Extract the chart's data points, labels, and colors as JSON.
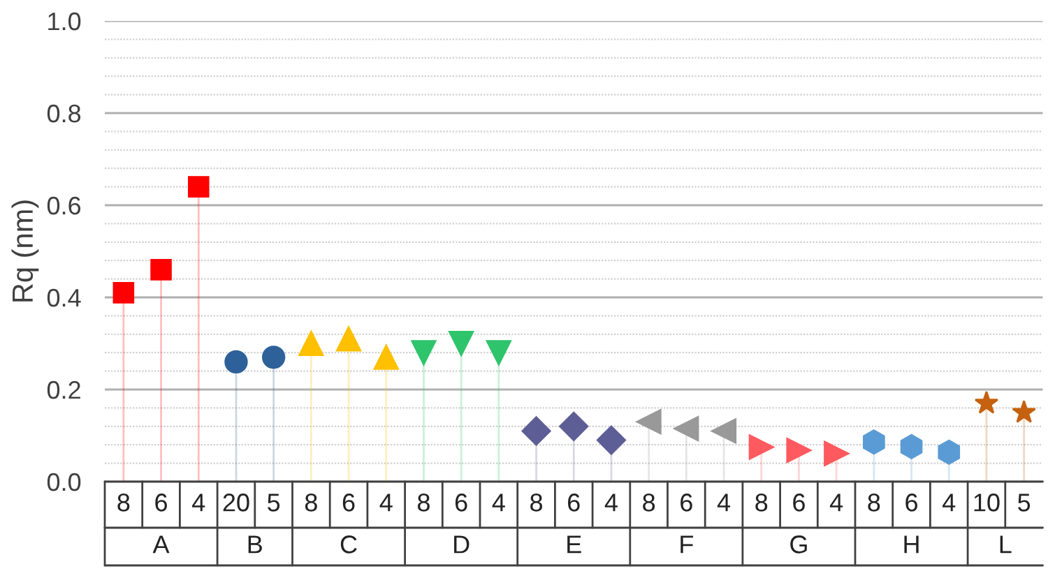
{
  "chart_data": {
    "type": "lollipop",
    "ylabel": "Rq (nm)",
    "categories": [
      "8",
      "6",
      "4",
      "20",
      "5",
      "8",
      "6",
      "4",
      "8",
      "6",
      "4",
      "8",
      "6",
      "4",
      "8",
      "6",
      "4",
      "8",
      "6",
      "4",
      "8",
      "6",
      "4",
      "10",
      "5"
    ],
    "ylim": [
      0,
      1.0
    ],
    "yticks": [
      {
        "value": 0,
        "label": "0.0"
      },
      {
        "value": 0.04,
        "label": null
      },
      {
        "value": 0.08,
        "label": null
      },
      {
        "value": 0.12,
        "label": null
      },
      {
        "value": 0.16,
        "label": null
      },
      {
        "value": 0.2,
        "label": "0.2"
      },
      {
        "value": 0.24,
        "label": null
      },
      {
        "value": 0.28,
        "label": null
      },
      {
        "value": 0.32,
        "label": null
      },
      {
        "value": 0.36,
        "label": null
      },
      {
        "value": 0.4,
        "label": "0.4"
      },
      {
        "value": 0.44,
        "label": null
      },
      {
        "value": 0.48,
        "label": null
      },
      {
        "value": 0.52,
        "label": null
      },
      {
        "value": 0.56,
        "label": null
      },
      {
        "value": 0.6,
        "label": "0.6"
      },
      {
        "value": 0.64,
        "label": null
      },
      {
        "value": 0.68,
        "label": null
      },
      {
        "value": 0.72,
        "label": null
      },
      {
        "value": 0.76,
        "label": null
      },
      {
        "value": 0.8,
        "label": "0.8"
      },
      {
        "value": 0.84,
        "label": null
      },
      {
        "value": 0.88,
        "label": null
      },
      {
        "value": 0.92,
        "label": null
      },
      {
        "value": 0.96,
        "label": null
      },
      {
        "value": 1.0,
        "label": "1.0"
      }
    ],
    "grid": "y",
    "annotations": [
      "A",
      "B",
      "C",
      "D",
      "E",
      "F",
      "G",
      "H",
      "L"
    ],
    "series": [
      {
        "color": "#ff0000",
        "marker": "square",
        "values": [
          0.41,
          0.46,
          0.64,
          null,
          null,
          null,
          null,
          null,
          null,
          null,
          null,
          null,
          null,
          null,
          null,
          null,
          null,
          null,
          null,
          null,
          null,
          null,
          null,
          null,
          null
        ]
      },
      {
        "color": "#2e6199",
        "marker": "circle",
        "values": [
          null,
          null,
          null,
          0.26,
          0.27,
          null,
          null,
          null,
          null,
          null,
          null,
          null,
          null,
          null,
          null,
          null,
          null,
          null,
          null,
          null,
          null,
          null,
          null,
          null,
          null
        ]
      },
      {
        "color": "#ffc000",
        "marker": "triangle",
        "values": [
          null,
          null,
          null,
          null,
          null,
          0.3,
          0.31,
          0.27,
          null,
          null,
          null,
          null,
          null,
          null,
          null,
          null,
          null,
          null,
          null,
          null,
          null,
          null,
          null,
          null,
          null
        ]
      },
      {
        "color": "#2ec46b",
        "marker": "triangle-down",
        "values": [
          null,
          null,
          null,
          null,
          null,
          null,
          null,
          null,
          0.28,
          0.3,
          0.28,
          null,
          null,
          null,
          null,
          null,
          null,
          null,
          null,
          null,
          null,
          null,
          null,
          null,
          null
        ]
      },
      {
        "color": "#5e5e96",
        "marker": "diamond",
        "values": [
          null,
          null,
          null,
          null,
          null,
          null,
          null,
          null,
          null,
          null,
          null,
          0.11,
          0.12,
          0.09,
          null,
          null,
          null,
          null,
          null,
          null,
          null,
          null,
          null,
          null,
          null
        ]
      },
      {
        "color": "#999999",
        "marker": "triangle-left",
        "values": [
          null,
          null,
          null,
          null,
          null,
          null,
          null,
          null,
          null,
          null,
          null,
          null,
          null,
          null,
          0.13,
          0.115,
          0.11,
          null,
          null,
          null,
          null,
          null,
          null,
          null,
          null
        ]
      },
      {
        "color": "#ff5a5f",
        "marker": "triangle-right",
        "values": [
          null,
          null,
          null,
          null,
          null,
          null,
          null,
          null,
          null,
          null,
          null,
          null,
          null,
          null,
          null,
          null,
          null,
          0.075,
          0.068,
          0.061,
          null,
          null,
          null,
          null,
          null
        ]
      },
      {
        "color": "#5b9bd5",
        "values": [
          null,
          null,
          null,
          null,
          null,
          null,
          null,
          null,
          null,
          null,
          null,
          null,
          null,
          null,
          null,
          null,
          null,
          null,
          null,
          null,
          0.086,
          0.076,
          0.064,
          null,
          null
        ]
      },
      {
        "color": "#c5610f",
        "marker": "star",
        "values": [
          null,
          null,
          null,
          null,
          null,
          null,
          null,
          null,
          null,
          null,
          null,
          null,
          null,
          null,
          null,
          null,
          null,
          null,
          null,
          null,
          null,
          null,
          null,
          0.17,
          0.15
        ]
      }
    ]
  }
}
